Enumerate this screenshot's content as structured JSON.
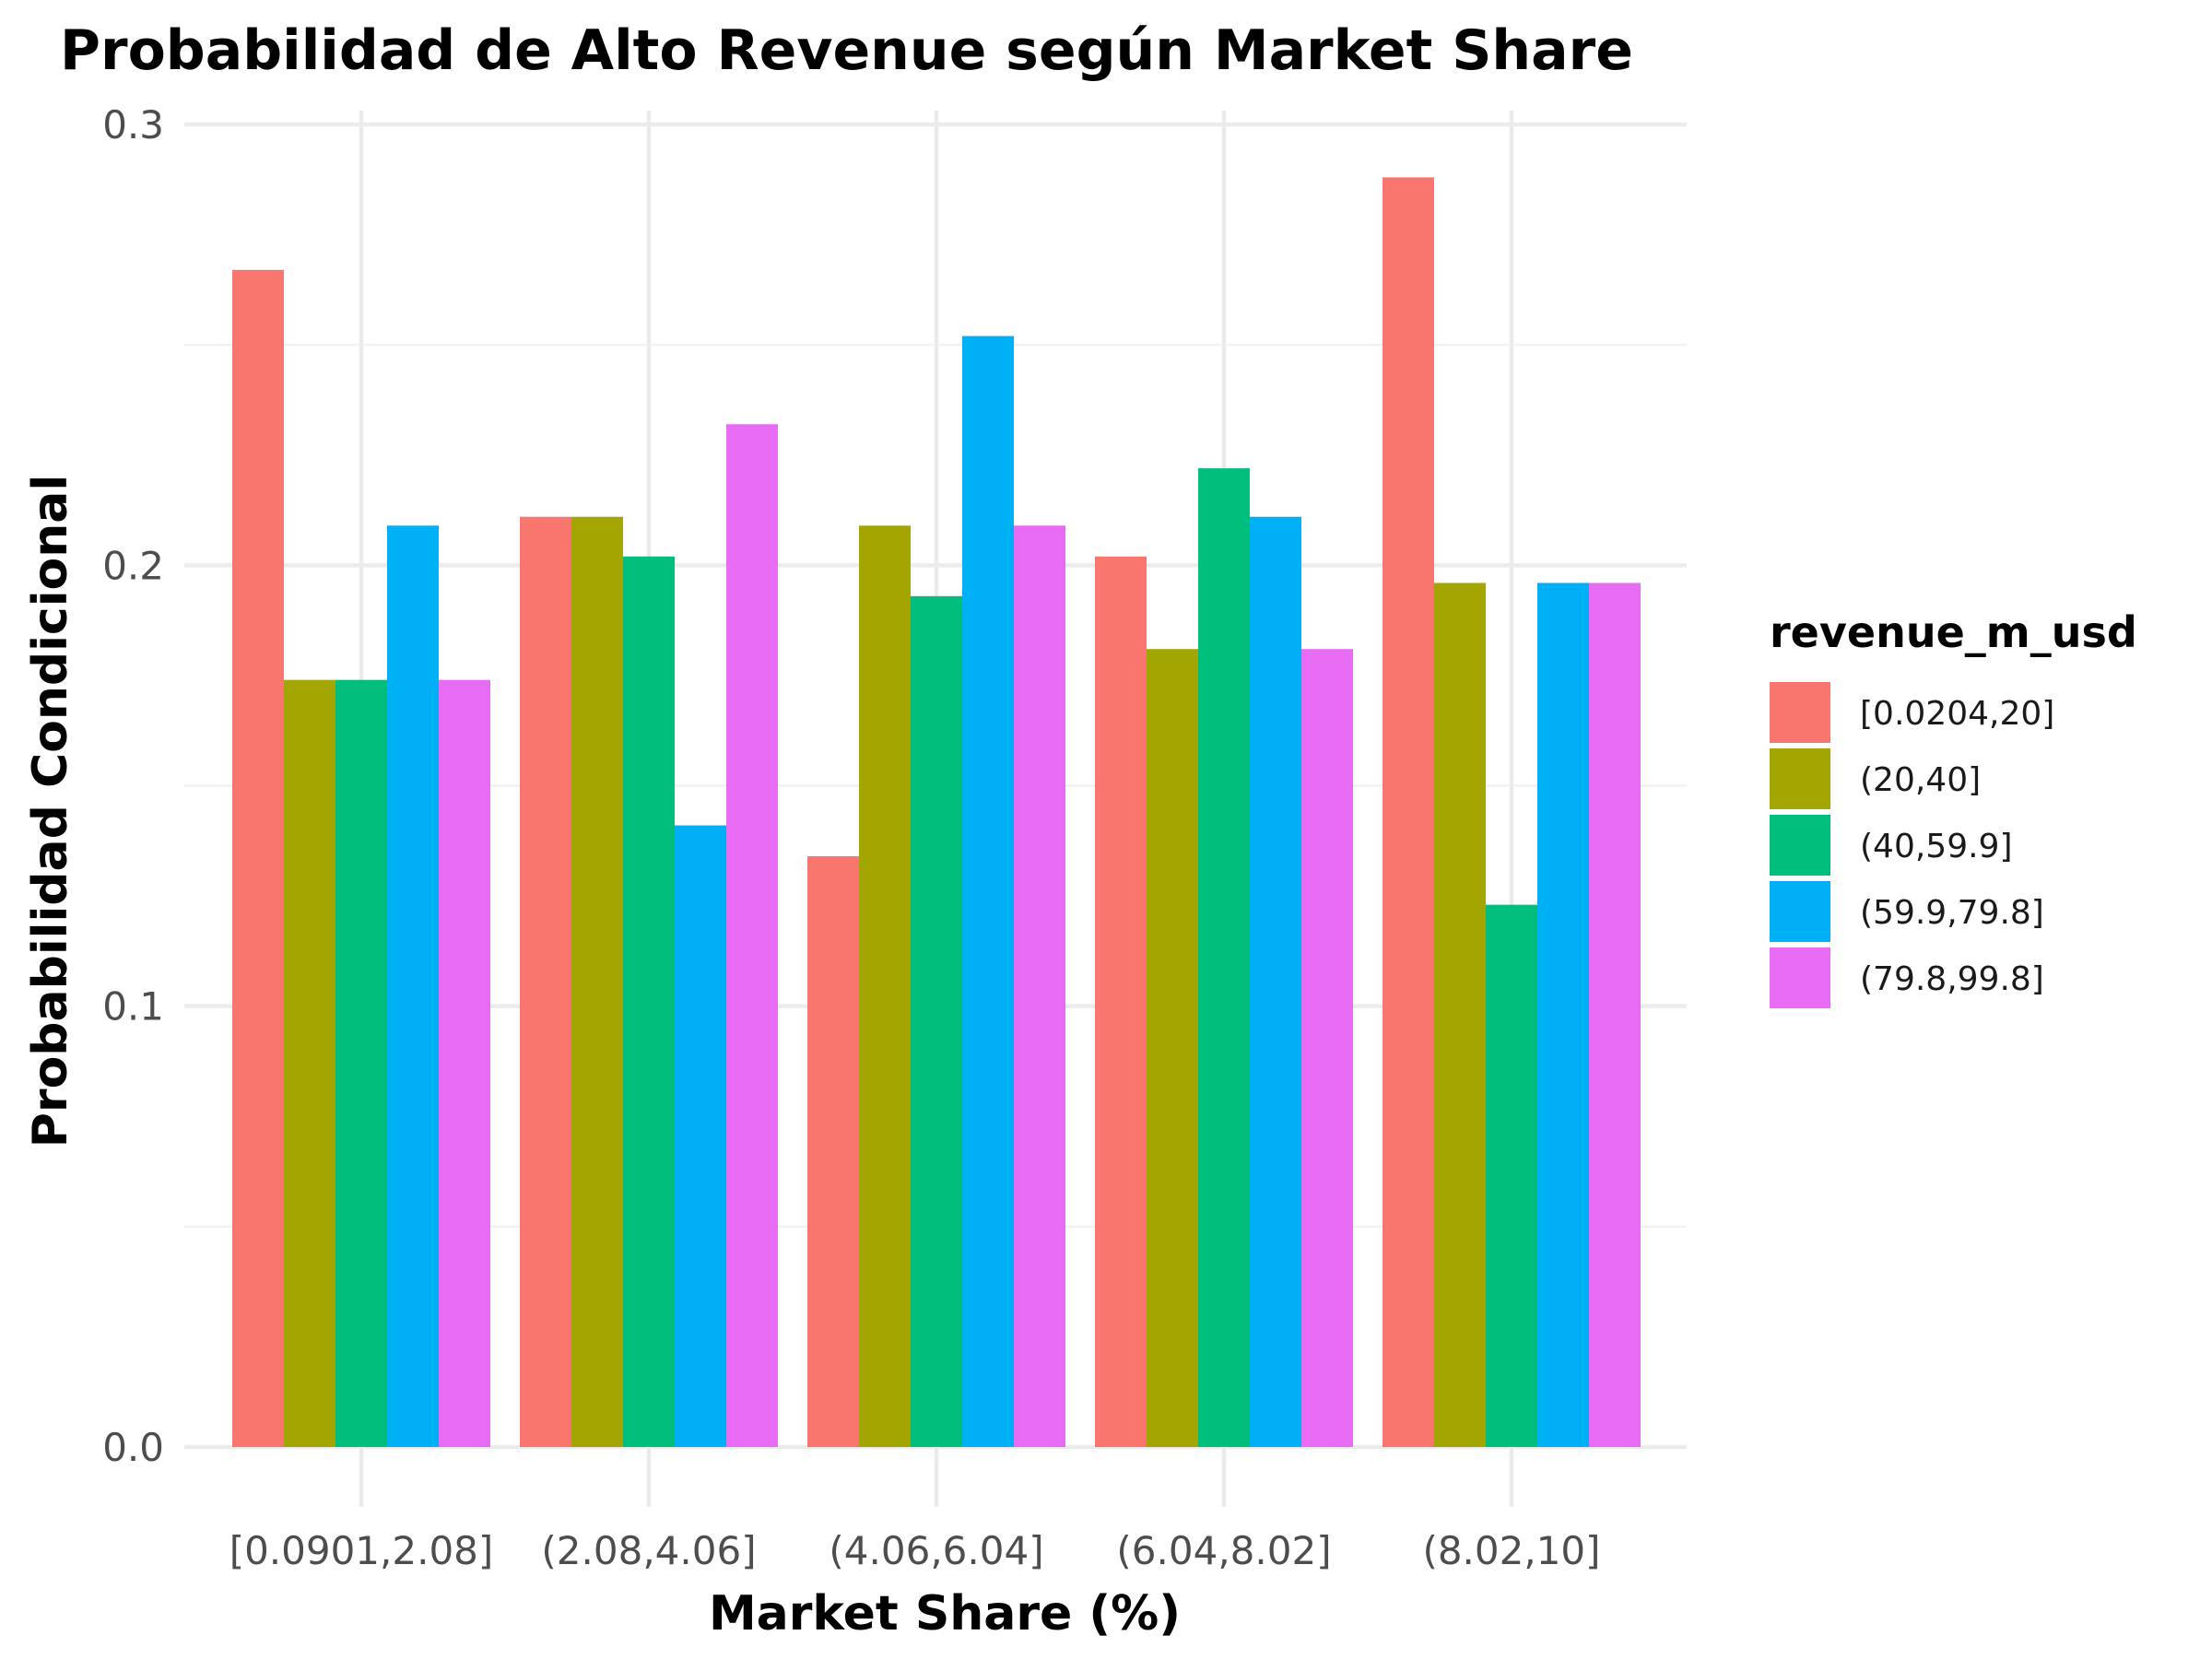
{
  "chart_data": {
    "type": "bar",
    "title": "Probabilidad de Alto Revenue según Market Share",
    "xlabel": "Market Share (%)",
    "ylabel": "Probabilidad Condicional",
    "ylim": [
      0,
      0.3
    ],
    "yticks": [
      "0.0",
      "0.1",
      "0.2",
      "0.3"
    ],
    "ytick_values": [
      0,
      0.1,
      0.2,
      0.3
    ],
    "grid": true,
    "legend_title": "revenue_m_usd",
    "legend_position": "right",
    "categories": [
      "[0.0901,2.08]",
      "(2.08,4.06]",
      "(4.06,6.04]",
      "(6.04,8.02]",
      "(8.02,10]"
    ],
    "series": [
      {
        "name": "[0.0204,20]",
        "color": "#F8766D",
        "values": [
          0.267,
          0.211,
          0.134,
          0.202,
          0.288
        ]
      },
      {
        "name": "(20,40]",
        "color": "#A3A500",
        "values": [
          0.174,
          0.211,
          0.209,
          0.181,
          0.196
        ]
      },
      {
        "name": "(40,59.9]",
        "color": "#00BF7D",
        "values": [
          0.174,
          0.202,
          0.193,
          0.222,
          0.123
        ]
      },
      {
        "name": "(59.9,79.8]",
        "color": "#00B0F6",
        "values": [
          0.209,
          0.141,
          0.252,
          0.211,
          0.196
        ]
      },
      {
        "name": "(79.8,99.8]",
        "color": "#E76BF3",
        "values": [
          0.174,
          0.232,
          0.209,
          0.181,
          0.196
        ]
      }
    ]
  }
}
